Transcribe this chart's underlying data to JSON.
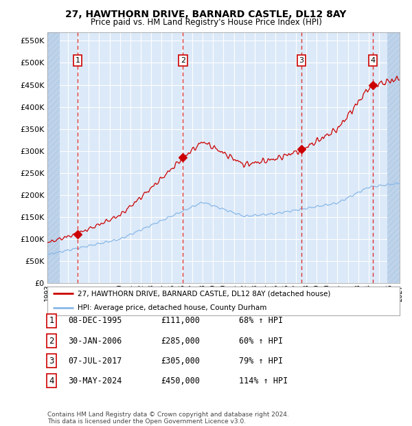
{
  "title": "27, HAWTHORN DRIVE, BARNARD CASTLE, DL12 8AY",
  "subtitle": "Price paid vs. HM Land Registry's House Price Index (HPI)",
  "legend_line1": "27, HAWTHORN DRIVE, BARNARD CASTLE, DL12 8AY (detached house)",
  "legend_line2": "HPI: Average price, detached house, County Durham",
  "sale_dates_num": [
    1995.93,
    2006.08,
    2017.51,
    2024.41
  ],
  "sale_prices": [
    111000,
    285000,
    305000,
    450000
  ],
  "sale_labels": [
    "1",
    "2",
    "3",
    "4"
  ],
  "sale_hpi_pct": [
    "68% ↑ HPI",
    "60% ↑ HPI",
    "79% ↑ HPI",
    "114% ↑ HPI"
  ],
  "sale_date_str": [
    "08-DEC-1995",
    "30-JAN-2006",
    "07-JUL-2017",
    "30-MAY-2024"
  ],
  "sale_price_str": [
    "£111,000",
    "£285,000",
    "£305,000",
    "£450,000"
  ],
  "xmin": 1993.0,
  "xmax": 2027.0,
  "ymin": 0,
  "ymax": 570000,
  "yticks": [
    0,
    50000,
    100000,
    150000,
    200000,
    250000,
    300000,
    350000,
    400000,
    450000,
    500000,
    550000
  ],
  "background_color": "#dce9f8",
  "hatch_color": "#b8cfe8",
  "grid_color": "#ffffff",
  "red_line_color": "#cc0000",
  "blue_line_color": "#88b8e8",
  "sale_marker_color": "#cc0000",
  "dashed_line_color": "#dd3333",
  "footer": "Contains HM Land Registry data © Crown copyright and database right 2024.\nThis data is licensed under the Open Government Licence v3.0."
}
